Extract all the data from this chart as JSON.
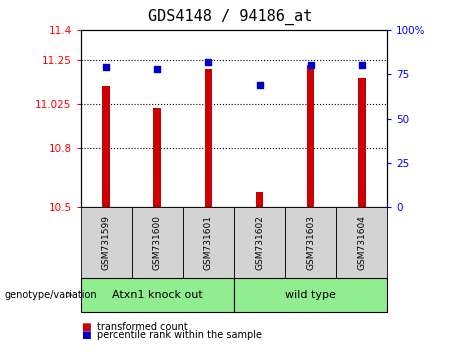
{
  "title": "GDS4148 / 94186_at",
  "samples": [
    "GSM731599",
    "GSM731600",
    "GSM731601",
    "GSM731602",
    "GSM731603",
    "GSM731604"
  ],
  "bar_values": [
    11.115,
    11.005,
    11.2,
    10.575,
    11.22,
    11.155
  ],
  "dot_values": [
    79,
    78,
    82,
    69,
    80,
    80
  ],
  "bar_color": "#cc0000",
  "dot_color": "#0000cc",
  "ylim_left": [
    10.5,
    11.4
  ],
  "ylim_right": [
    0,
    100
  ],
  "yticks_left": [
    10.5,
    10.8,
    11.025,
    11.25,
    11.4
  ],
  "ytick_labels_left": [
    "10.5",
    "10.8",
    "11.025",
    "11.25",
    "11.4"
  ],
  "yticks_right": [
    0,
    25,
    50,
    75,
    100
  ],
  "ytick_labels_right": [
    "0",
    "25",
    "50",
    "75",
    "100%"
  ],
  "hlines": [
    10.8,
    11.025,
    11.25
  ],
  "group1_label": "Atxn1 knock out",
  "group2_label": "wild type",
  "group_label": "genotype/variation",
  "legend_items": [
    "transformed count",
    "percentile rank within the sample"
  ],
  "bar_width": 0.15,
  "bg_color_sample": "#d3d3d3",
  "group_color": "#90ee90",
  "title_fontsize": 11,
  "tick_fontsize": 7.5,
  "sample_fontsize": 6.5,
  "legend_fontsize": 7,
  "group_fontsize": 8
}
